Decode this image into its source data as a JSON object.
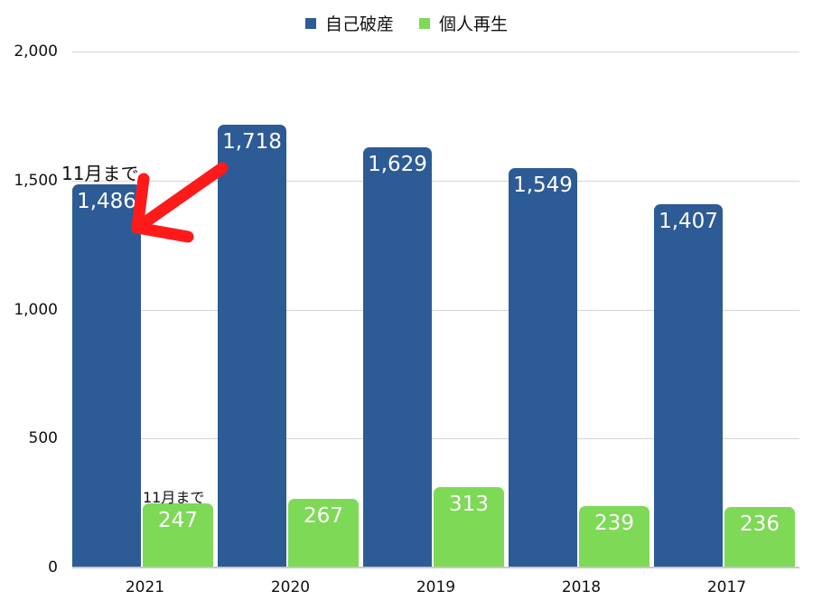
{
  "chart_data": {
    "type": "bar",
    "title": "",
    "xlabel": "",
    "ylabel": "",
    "categories": [
      "2021",
      "2020",
      "2019",
      "2018",
      "2017"
    ],
    "series": [
      {
        "name": "自己破産",
        "color": "#2d5b95",
        "values": [
          1486,
          1718,
          1629,
          1549,
          1407
        ],
        "labels": [
          "1,486",
          "1,718",
          "1,629",
          "1,549",
          "1,407"
        ]
      },
      {
        "name": "個人再生",
        "color": "#7ed957",
        "values": [
          247,
          267,
          313,
          239,
          236
        ],
        "labels": [
          "247",
          "267",
          "313",
          "239",
          "236"
        ]
      }
    ],
    "ylim": [
      0,
      2000
    ],
    "yticks": [
      0,
      500,
      1000,
      1500,
      2000
    ],
    "ytick_labels": [
      "0",
      "500",
      "1,000",
      "1,500",
      "2,000"
    ],
    "grid": true,
    "legend_position": "top",
    "annotations": [
      {
        "text": "11月まで",
        "target": "2021 自己破産",
        "with_arrow": true,
        "arrow_color": "#ff1a1a"
      },
      {
        "text": "11月まで",
        "target": "2021 個人再生"
      }
    ]
  },
  "legend": {
    "items": [
      "自己破産",
      "個人再生"
    ]
  },
  "annotations": {
    "top": "11月まで",
    "bottom": "11月まで"
  }
}
